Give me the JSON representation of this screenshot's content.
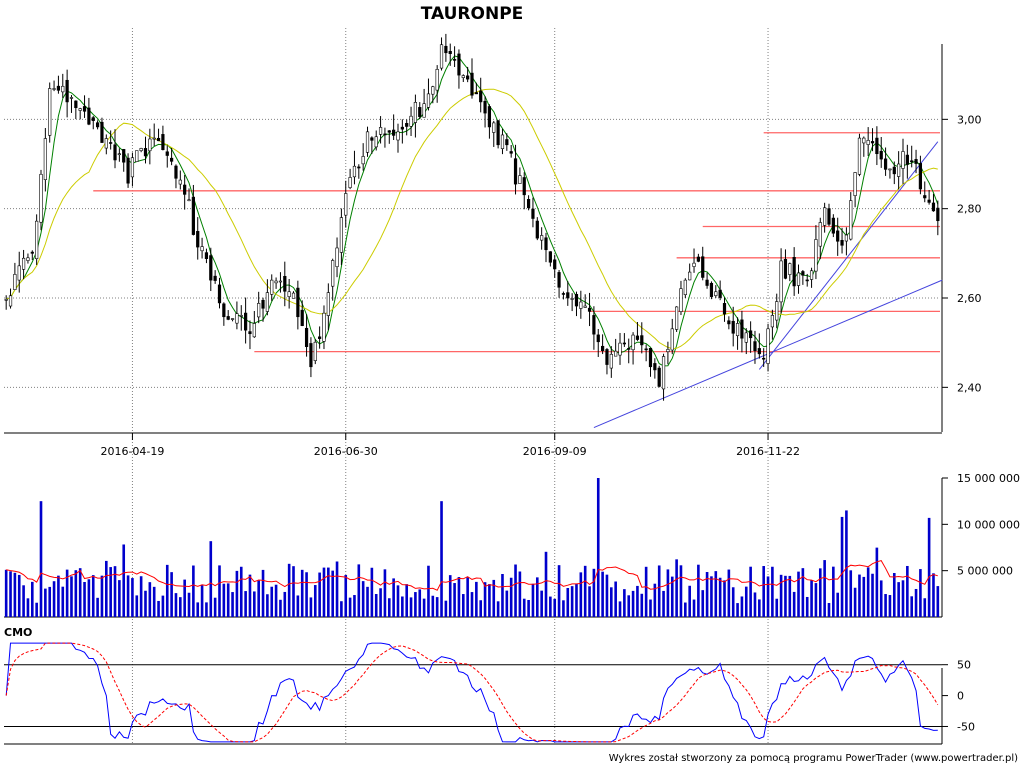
{
  "chart_data": [
    {
      "type": "candlestick",
      "title": "TAURONPE",
      "x_tick_labels": [
        "2016-04-19",
        "2016-06-30",
        "2016-09-09",
        "2016-11-22"
      ],
      "y_ticks": [
        2.4,
        2.6,
        2.8,
        3.0
      ],
      "y_tick_labels": [
        "2,40",
        "2,60",
        "2,80",
        "3,00"
      ],
      "ylim": [
        2.3,
        3.2
      ],
      "session_count": 215,
      "x_tick_sessions": [
        29,
        78,
        126,
        175
      ],
      "price_anchors": [
        [
          0,
          2.6
        ],
        [
          6,
          2.7
        ],
        [
          10,
          3.05
        ],
        [
          14,
          3.05
        ],
        [
          20,
          2.98
        ],
        [
          28,
          2.88
        ],
        [
          34,
          2.96
        ],
        [
          40,
          2.88
        ],
        [
          44,
          2.72
        ],
        [
          50,
          2.58
        ],
        [
          56,
          2.52
        ],
        [
          62,
          2.66
        ],
        [
          68,
          2.55
        ],
        [
          70,
          2.43
        ],
        [
          74,
          2.62
        ],
        [
          78,
          2.84
        ],
        [
          84,
          2.97
        ],
        [
          90,
          2.98
        ],
        [
          96,
          3.04
        ],
        [
          100,
          3.15
        ],
        [
          106,
          3.1
        ],
        [
          110,
          3.0
        ],
        [
          114,
          2.95
        ],
        [
          120,
          2.8
        ],
        [
          124,
          2.7
        ],
        [
          128,
          2.6
        ],
        [
          134,
          2.56
        ],
        [
          138,
          2.46
        ],
        [
          144,
          2.52
        ],
        [
          150,
          2.4
        ],
        [
          154,
          2.6
        ],
        [
          158,
          2.7
        ],
        [
          164,
          2.58
        ],
        [
          170,
          2.5
        ],
        [
          174,
          2.48
        ],
        [
          178,
          2.66
        ],
        [
          184,
          2.64
        ],
        [
          188,
          2.78
        ],
        [
          193,
          2.72
        ],
        [
          196,
          2.97
        ],
        [
          202,
          2.88
        ],
        [
          208,
          2.93
        ],
        [
          212,
          2.8
        ],
        [
          214,
          2.77
        ]
      ],
      "series": [
        {
          "name": "",
          "kind": "sma-short",
          "color": "#008000",
          "period": 5
        },
        {
          "name": "",
          "kind": "sma-long",
          "color": "#cccc00",
          "period": 20
        }
      ],
      "horizontal_levels": [
        {
          "y": 2.97,
          "from_session": 174,
          "color": "#ff6666"
        },
        {
          "y": 2.84,
          "from_session": 20,
          "color": "#ff6666"
        },
        {
          "y": 2.76,
          "from_session": 160,
          "color": "#ff6666"
        },
        {
          "y": 2.69,
          "from_session": 154,
          "color": "#ff6666"
        },
        {
          "y": 2.57,
          "from_session": 134,
          "color": "#ff6666"
        },
        {
          "y": 2.48,
          "from_session": 57,
          "color": "#ff6666"
        }
      ],
      "trend_lines": [
        {
          "from": [
            135,
            2.31
          ],
          "to": [
            215,
            2.64
          ],
          "color": "#4444dd"
        },
        {
          "from": [
            173,
            2.44
          ],
          "to": [
            214,
            2.95
          ],
          "color": "#4444dd"
        }
      ],
      "colors": {
        "up": "#ffffff",
        "down": "#000000",
        "wick": "#000000",
        "grid": "#808080"
      }
    },
    {
      "type": "bar",
      "y_ticks": [
        5000000,
        10000000,
        15000000
      ],
      "y_tick_labels": [
        "5 000 000",
        "10 000 000",
        "15 000 000"
      ],
      "ylim": [
        0,
        15000000
      ],
      "series": [
        {
          "name": "",
          "kind": "volume",
          "color": "#0000cc"
        },
        {
          "name": "",
          "kind": "volume-average",
          "color": "#ff0000"
        }
      ]
    },
    {
      "type": "line",
      "indicator_label": "CMO",
      "y_ticks": [
        50,
        0,
        -50
      ],
      "y_tick_labels": [
        "50",
        "0",
        "-50"
      ],
      "ylim": [
        -80,
        90
      ],
      "reference_lines": [
        50,
        -50
      ],
      "series": [
        {
          "name": "",
          "kind": "cmo",
          "color": "#0000ff"
        },
        {
          "name": "",
          "kind": "cmo-signal",
          "color": "#ff0000"
        }
      ]
    }
  ],
  "footer_text": "Wykres został stworzony za pomocą programu PowerTrader (www.powertrader.pl)"
}
